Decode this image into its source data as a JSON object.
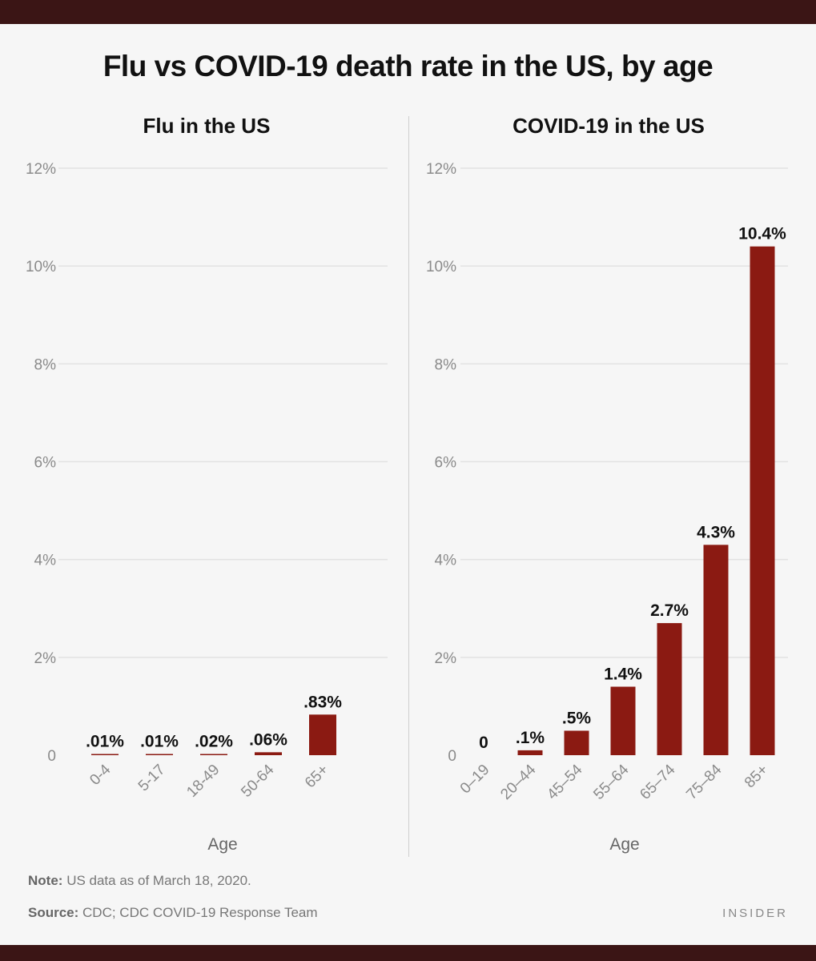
{
  "title": "Flu vs COVID-19 death rate in the US, by age",
  "note": {
    "label": "Note:",
    "text": "US data as of March 18, 2020."
  },
  "source": {
    "label": "Source:",
    "text": "CDC; CDC COVID-19 Response Team"
  },
  "brand": "INSIDER",
  "colors": {
    "bar": "#8b1a12",
    "grid": "#e2e2e2",
    "tick": "#8a8a8a",
    "label": "#111111",
    "frame": "#3b1515"
  },
  "chart_data": [
    {
      "type": "bar",
      "title": "Flu in the US",
      "xlabel": "Age",
      "ylabel": "",
      "ylim": [
        0,
        12
      ],
      "yticks": [
        0,
        2,
        4,
        6,
        8,
        10,
        12
      ],
      "ytick_labels": [
        "0",
        "2%",
        "4%",
        "6%",
        "8%",
        "10%",
        "12%"
      ],
      "categories": [
        "0-4",
        "5-17",
        "18-49",
        "50-64",
        "65+"
      ],
      "values": [
        0.01,
        0.01,
        0.02,
        0.06,
        0.83
      ],
      "data_labels": [
        ".01%",
        ".01%",
        ".02%",
        ".06%",
        ".83%"
      ]
    },
    {
      "type": "bar",
      "title": "COVID-19 in the US",
      "xlabel": "Age",
      "ylabel": "",
      "ylim": [
        0,
        12
      ],
      "yticks": [
        0,
        2,
        4,
        6,
        8,
        10,
        12
      ],
      "ytick_labels": [
        "0",
        "2%",
        "4%",
        "6%",
        "8%",
        "10%",
        "12%"
      ],
      "categories": [
        "0–19",
        "20–44",
        "45–54",
        "55–64",
        "65–74",
        "75–84",
        "85+"
      ],
      "values": [
        0,
        0.1,
        0.5,
        1.4,
        2.7,
        4.3,
        10.4
      ],
      "data_labels": [
        "0",
        ".1%",
        ".5%",
        "1.4%",
        "2.7%",
        "4.3%",
        "10.4%"
      ]
    }
  ]
}
